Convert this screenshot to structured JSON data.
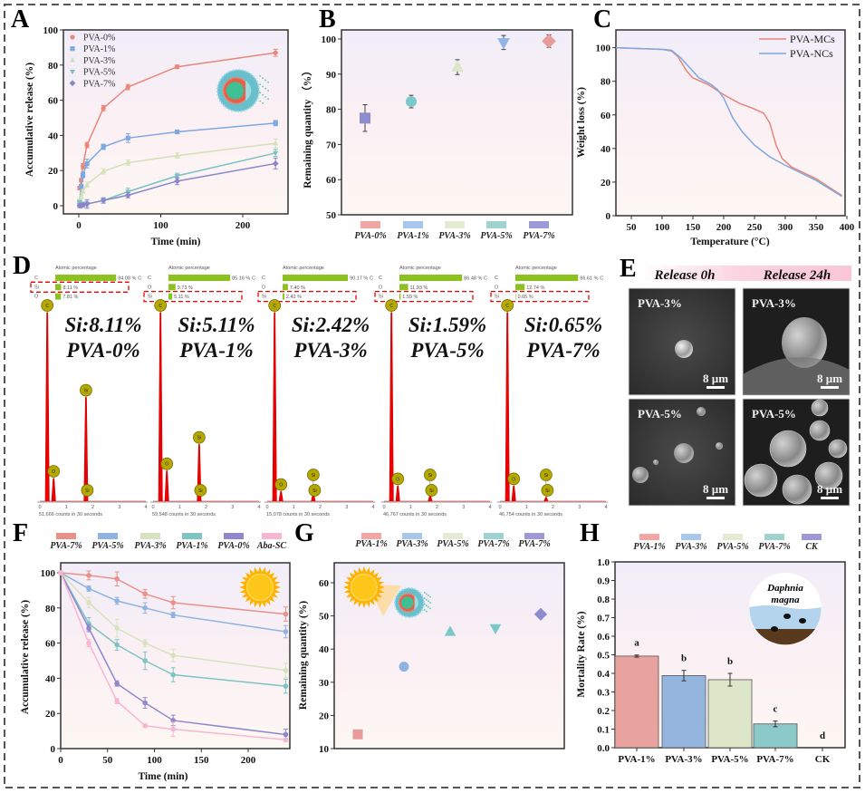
{
  "panel_labels": [
    "A",
    "B",
    "C",
    "D",
    "E",
    "F",
    "G",
    "H"
  ],
  "chart_data": [
    {
      "panel": "A",
      "type": "line",
      "xlabel": "Time (min)",
      "ylabel": "Accumulative release (%)",
      "xlim": [
        -15,
        255
      ],
      "ylim": [
        -5,
        100
      ],
      "xticks": [
        0,
        100,
        200
      ],
      "yticks": [
        0,
        20,
        40,
        60,
        80,
        100
      ],
      "legend": "top-left",
      "x": [
        1,
        3,
        5,
        10,
        30,
        60,
        120,
        240
      ],
      "series": [
        {
          "name": "PVA-0%",
          "color": "#e8877c",
          "marker": "circle",
          "y": [
            10,
            14.5,
            22.5,
            34.5,
            55.5,
            67.5,
            79,
            87
          ],
          "err": [
            1,
            1,
            1.5,
            1.5,
            1.5,
            1.5,
            1,
            2
          ]
        },
        {
          "name": "PVA-1%",
          "color": "#7ea8e0",
          "marker": "square",
          "y": [
            2,
            11,
            17.5,
            24,
            33.5,
            38.5,
            42,
            47
          ],
          "err": [
            1,
            1,
            1.5,
            2.5,
            1.5,
            2.5,
            1,
            1.5
          ]
        },
        {
          "name": "PVA-3%",
          "color": "#d3e0b8",
          "marker": "triangle",
          "y": [
            3,
            5,
            8,
            12,
            19.5,
            24.5,
            28.5,
            35.5
          ],
          "err": [
            1,
            1,
            1,
            1.5,
            1.5,
            1.5,
            1.5,
            2.5
          ]
        },
        {
          "name": "PVA-5%",
          "color": "#79c1c3",
          "marker": "triangle-down",
          "y": [
            2,
            1,
            1,
            1,
            3,
            8,
            17,
            30
          ],
          "err": [
            1,
            1,
            1,
            1.5,
            1.5,
            2,
            1.5,
            2
          ]
        },
        {
          "name": "PVA-7%",
          "color": "#8b85cc",
          "marker": "diamond",
          "y": [
            0,
            0,
            0.5,
            1,
            3,
            6,
            14,
            24
          ],
          "err": [
            1,
            1,
            1,
            2.5,
            1.5,
            1.5,
            2,
            3
          ]
        }
      ]
    },
    {
      "panel": "B",
      "type": "scatter",
      "ylabel": "Remaining quantity （%）",
      "ylim": [
        50,
        100
      ],
      "yticks": [
        50,
        60,
        70,
        80,
        90,
        100
      ],
      "legend": "bottom",
      "categories": [
        "PVA-0%",
        "PVA-1%",
        "PVA-3%",
        "PVA-5%",
        "PVA-7%"
      ],
      "legend_colors": [
        "#f2a7a4",
        "#a9c6ec",
        "#e4ebd4",
        "#9fd3d1",
        "#9d98d6"
      ],
      "values": [
        77.5,
        82.2,
        92,
        99,
        99.4
      ],
      "errors": [
        3.8,
        1.8,
        2.1,
        2,
        1.8
      ],
      "markers": [
        "square",
        "circle",
        "triangle",
        "triangle-down",
        "diamond"
      ],
      "marker_colors": [
        "#8d8ccf",
        "#7cc7c9",
        "#dde6c6",
        "#8fb4e3",
        "#e89b9b"
      ]
    },
    {
      "panel": "C",
      "type": "line",
      "xlabel": "Temperature (°C)",
      "ylabel": "Weight loss (%)",
      "xlim": [
        25,
        400
      ],
      "ylim": [
        0,
        110
      ],
      "xticks": [
        50,
        100,
        150,
        200,
        250,
        300,
        350,
        400
      ],
      "yticks": [
        0,
        20,
        40,
        60,
        80,
        100
      ],
      "legend": "top-right",
      "series": [
        {
          "name": "PVA-MCs",
          "color": "#e8857a",
          "x": [
            25,
            100,
            115,
            125,
            140,
            150,
            175,
            200,
            225,
            250,
            265,
            275,
            285,
            295,
            310,
            350,
            392
          ],
          "y": [
            100,
            99,
            98,
            95,
            86,
            82,
            78,
            72,
            67,
            63.5,
            61,
            55,
            42,
            34,
            29,
            22,
            12
          ]
        },
        {
          "name": "PVA-NCs",
          "color": "#7ea8e0",
          "x": [
            25,
            100,
            115,
            130,
            150,
            160,
            180,
            190,
            200,
            215,
            230,
            250,
            275,
            300,
            350,
            392
          ],
          "y": [
            100,
            99,
            98.5,
            94,
            86,
            82,
            78,
            75,
            70,
            58,
            50,
            42,
            35,
            30,
            21,
            11.5
          ]
        }
      ]
    },
    {
      "panel": "D",
      "type": "bar",
      "header": "Atomic percentage",
      "xticks": [
        0,
        1,
        2,
        3,
        4
      ],
      "spectra": [
        {
          "si_label": "Si:8.11%",
          "label": "PVA-0%",
          "counts": "51,666 counts in 30 seconds",
          "atomic": [
            {
              "element": "C",
              "value": 84.08,
              "text": "84.08 %"
            },
            {
              "element": "Si",
              "value": 8.11,
              "text": "8.11 %"
            },
            {
              "element": "O",
              "value": 7.81,
              "text": "7.81 %"
            }
          ],
          "highlight_row": 1,
          "peaks": [
            {
              "element": "C",
              "kev": 0.28,
              "rel": 1.0
            },
            {
              "element": "O",
              "kev": 0.52,
              "rel": 0.12
            },
            {
              "element": "Si",
              "kev": 1.74,
              "rel": 0.55
            }
          ]
        },
        {
          "si_label": "Si:5.11%",
          "label": "PVA-1%",
          "counts": "59,548 counts in 30 seconds",
          "atomic": [
            {
              "element": "C",
              "value": 85.16,
              "text": "85.16 %"
            },
            {
              "element": "O",
              "value": 9.73,
              "text": "9.73 %"
            },
            {
              "element": "Si",
              "value": 5.11,
              "text": "5.11 %"
            }
          ],
          "highlight_row": 2,
          "peaks": [
            {
              "element": "C",
              "kev": 0.28,
              "rel": 1.0
            },
            {
              "element": "O",
              "kev": 0.52,
              "rel": 0.16
            },
            {
              "element": "Si",
              "kev": 1.74,
              "rel": 0.3
            }
          ]
        },
        {
          "si_label": "Si:2.42%",
          "label": "PVA-3%",
          "counts": "15,078 counts in 30 seconds",
          "atomic": [
            {
              "element": "C",
              "value": 90.17,
              "text": "90.17 %"
            },
            {
              "element": "O",
              "value": 7.4,
              "text": "7.40 %"
            },
            {
              "element": "Si",
              "value": 2.42,
              "text": "2.42 %"
            }
          ],
          "highlight_row": 2,
          "peaks": [
            {
              "element": "C",
              "kev": 0.28,
              "rel": 1.0
            },
            {
              "element": "O",
              "kev": 0.52,
              "rel": 0.05
            },
            {
              "element": "Si",
              "kev": 1.74,
              "rel": 0.04
            }
          ]
        },
        {
          "si_label": "Si:1.59%",
          "label": "PVA-5%",
          "counts": "46,767 counts in 30 seconds",
          "atomic": [
            {
              "element": "C",
              "value": 86.48,
              "text": "86.48 %"
            },
            {
              "element": "O",
              "value": 11.93,
              "text": "11.93 %"
            },
            {
              "element": "Si",
              "value": 1.59,
              "text": "1.59 %"
            }
          ],
          "highlight_row": 2,
          "peaks": [
            {
              "element": "C",
              "kev": 0.28,
              "rel": 1.0
            },
            {
              "element": "O",
              "kev": 0.52,
              "rel": 0.08
            },
            {
              "element": "Si",
              "kev": 1.74,
              "rel": 0.03
            }
          ]
        },
        {
          "si_label": "Si:0.65%",
          "label": "PVA-7%",
          "counts": "46,754 counts in 30 seconds",
          "atomic": [
            {
              "element": "C",
              "value": 86.61,
              "text": "86.61 %"
            },
            {
              "element": "O",
              "value": 12.74,
              "text": "12.74 %"
            },
            {
              "element": "Si",
              "value": 0.65,
              "text": "0.65 %"
            }
          ],
          "highlight_row": 2,
          "peaks": [
            {
              "element": "C",
              "kev": 0.28,
              "rel": 1.0
            },
            {
              "element": "O",
              "kev": 0.52,
              "rel": 0.08
            },
            {
              "element": "Si",
              "kev": 1.74,
              "rel": 0.02
            }
          ]
        }
      ]
    },
    {
      "panel": "F",
      "type": "line",
      "xlabel": "Time (min)",
      "ylabel": "Accumulative release (%)",
      "xlim": [
        0,
        245
      ],
      "ylim": [
        0,
        105
      ],
      "xticks": [
        0,
        50,
        100,
        150,
        200
      ],
      "yticks": [
        0,
        20,
        40,
        60,
        80,
        100
      ],
      "legend": "top",
      "x": [
        0,
        30,
        60,
        90,
        120,
        240
      ],
      "series": [
        {
          "name": "PVA-7%",
          "color": "#e8928a",
          "y": [
            100,
            98.5,
            96.5,
            88,
            83,
            76.5
          ],
          "err": [
            1,
            2.5,
            4,
            2.5,
            3.5,
            4
          ]
        },
        {
          "name": "PVA-5%",
          "color": "#8fb2e0",
          "y": [
            100,
            91,
            84,
            80,
            76,
            66.5
          ],
          "err": [
            1,
            1.5,
            2,
            3,
            1.5,
            3.5
          ]
        },
        {
          "name": "PVA-3%",
          "color": "#d6e2c0",
          "y": [
            100,
            83,
            68.5,
            60,
            53,
            44.5
          ],
          "err": [
            1,
            3,
            5,
            2,
            3.5,
            4
          ]
        },
        {
          "name": "PVA-1%",
          "color": "#7fc3c2",
          "y": [
            100,
            71,
            59,
            50,
            42,
            35.5
          ],
          "err": [
            1,
            3.5,
            3,
            5,
            4,
            4
          ]
        },
        {
          "name": "PVA-0%",
          "color": "#8f88cc",
          "y": [
            100,
            68.5,
            37,
            26,
            16,
            8
          ],
          "err": [
            1,
            2,
            1.5,
            3,
            3,
            3
          ]
        },
        {
          "name": "Aba-SC",
          "color": "#f7b6d2",
          "y": [
            100,
            60,
            27,
            13,
            11,
            5
          ],
          "err": [
            1,
            2,
            1.5,
            1,
            4,
            1
          ]
        }
      ]
    },
    {
      "panel": "G",
      "type": "scatter",
      "ylabel": "Remaining quantity (%)",
      "ylim": [
        10,
        65
      ],
      "yticks": [
        10,
        20,
        30,
        40,
        50,
        60
      ],
      "legend": "top",
      "categories": [
        "PVA-1%",
        "PVA-3%",
        "PVA-5%",
        "PVA-7%",
        "PVA-7%"
      ],
      "legend_colors": [
        "#f2a7a4",
        "#a9c6ec",
        "#e4ebd4",
        "#9fd3d1",
        "#9d98d6"
      ],
      "values": [
        14.3,
        34.7,
        45.2,
        46.3,
        50.5
      ],
      "markers": [
        "square",
        "circle",
        "triangle",
        "triangle-down",
        "diamond"
      ],
      "marker_colors": [
        "#e89b9b",
        "#8fb4e3",
        "#7cc7c9",
        "#7cc7c9",
        "#8d8ccf"
      ]
    },
    {
      "panel": "H",
      "type": "bar",
      "ylabel": "Mortality Rate (%)",
      "ylim": [
        0,
        1.0
      ],
      "yticks": [
        "0.0",
        "0.1",
        "0.2",
        "0.3",
        "0.4",
        "0.5",
        "0.6",
        "0.7",
        "0.8",
        "0.9",
        "1.0"
      ],
      "legend": "top",
      "categories": [
        "PVA-1%",
        "PVA-3%",
        "PVA-5%",
        "PVA-7%",
        "CK"
      ],
      "legend_colors": [
        "#f2a7a4",
        "#a9c6ec",
        "#e4ebd4",
        "#9fd3d1",
        "#9d98d6"
      ],
      "values": [
        0.493,
        0.388,
        0.366,
        0.128,
        0
      ],
      "errors": [
        0.006,
        0.028,
        0.034,
        0.015,
        0
      ],
      "bar_colors": [
        "#e8a3a1",
        "#94b6de",
        "#dde6c9",
        "#8ccac9",
        "#9d98d6"
      ],
      "significance": [
        "a",
        "b",
        "b",
        "c",
        "d"
      ],
      "inset_label": [
        "Daphnia",
        "magna"
      ]
    }
  ],
  "panel_e": {
    "columns": [
      "Release 0h",
      "Release 24h"
    ],
    "images": [
      {
        "label": "PVA-3%",
        "scale": "8 µm"
      },
      {
        "label": "PVA-3%",
        "scale": "8 µm"
      },
      {
        "label": "PVA-5%",
        "scale": "8 µm"
      },
      {
        "label": "PVA-5%",
        "scale": "8 µm"
      }
    ]
  }
}
